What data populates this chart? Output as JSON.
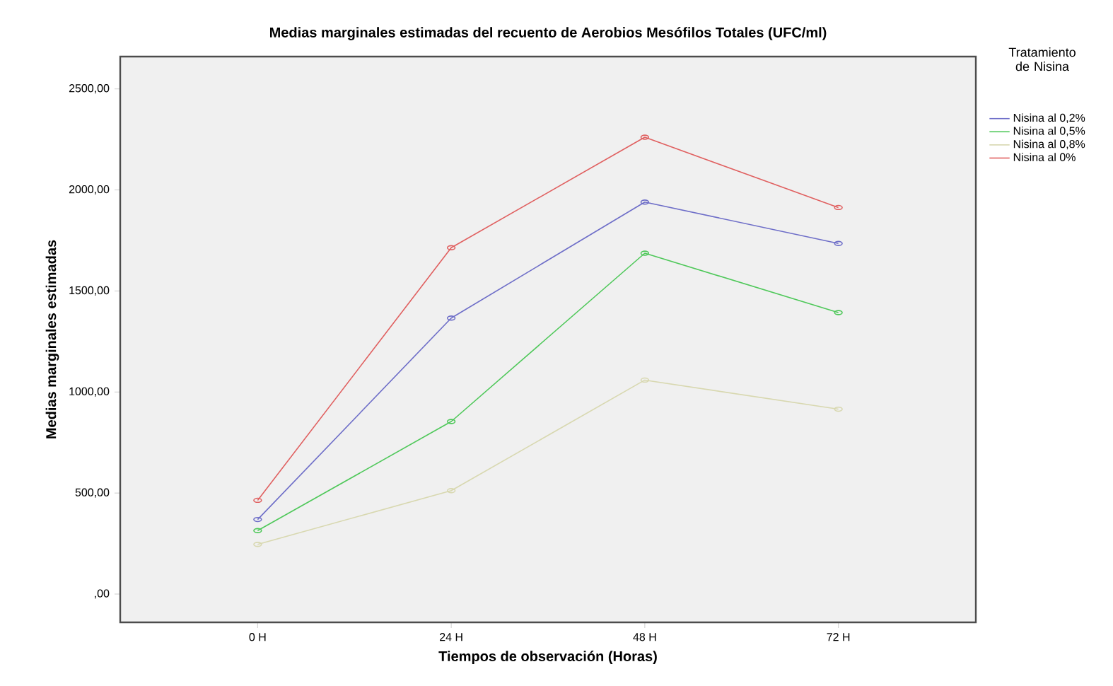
{
  "chart_data": {
    "type": "line",
    "title": "Medias marginales estimadas del recuento de Aerobios Mesófilos Totales (UFC/ml)",
    "xlabel": "Tiempos de observación (Horas)",
    "ylabel": "Medias marginales estimadas",
    "legend_title": "Tratamiento de Nisina",
    "categories": [
      "0 H",
      "24 H",
      "48 H",
      "72 H"
    ],
    "series": [
      {
        "name": "Nisina al 0,2%",
        "color": "#6e6ec8",
        "values": [
          369,
          1366,
          1940,
          1735
        ]
      },
      {
        "name": "Nisina al 0,5%",
        "color": "#4fc85a",
        "values": [
          314,
          854,
          1687,
          1393
        ]
      },
      {
        "name": "Nisina al 0,8%",
        "color": "#d8d8b0",
        "values": [
          246,
          512,
          1059,
          915
        ]
      },
      {
        "name": "Nisina al 0%",
        "color": "#e06060",
        "values": [
          464,
          1714,
          2261,
          1913
        ]
      }
    ],
    "ylim": [
      -140,
      2660
    ],
    "yticks": [
      {
        "value": 0,
        "label": ",00"
      },
      {
        "value": 500,
        "label": "500,00"
      },
      {
        "value": 1000,
        "label": "1000,00"
      },
      {
        "value": 1500,
        "label": "1500,00"
      },
      {
        "value": 2000,
        "label": "2000,00"
      },
      {
        "value": 2500,
        "label": "2500,00"
      }
    ],
    "grid": false,
    "legend": "right",
    "marker": "circle",
    "line_style": "solid"
  }
}
